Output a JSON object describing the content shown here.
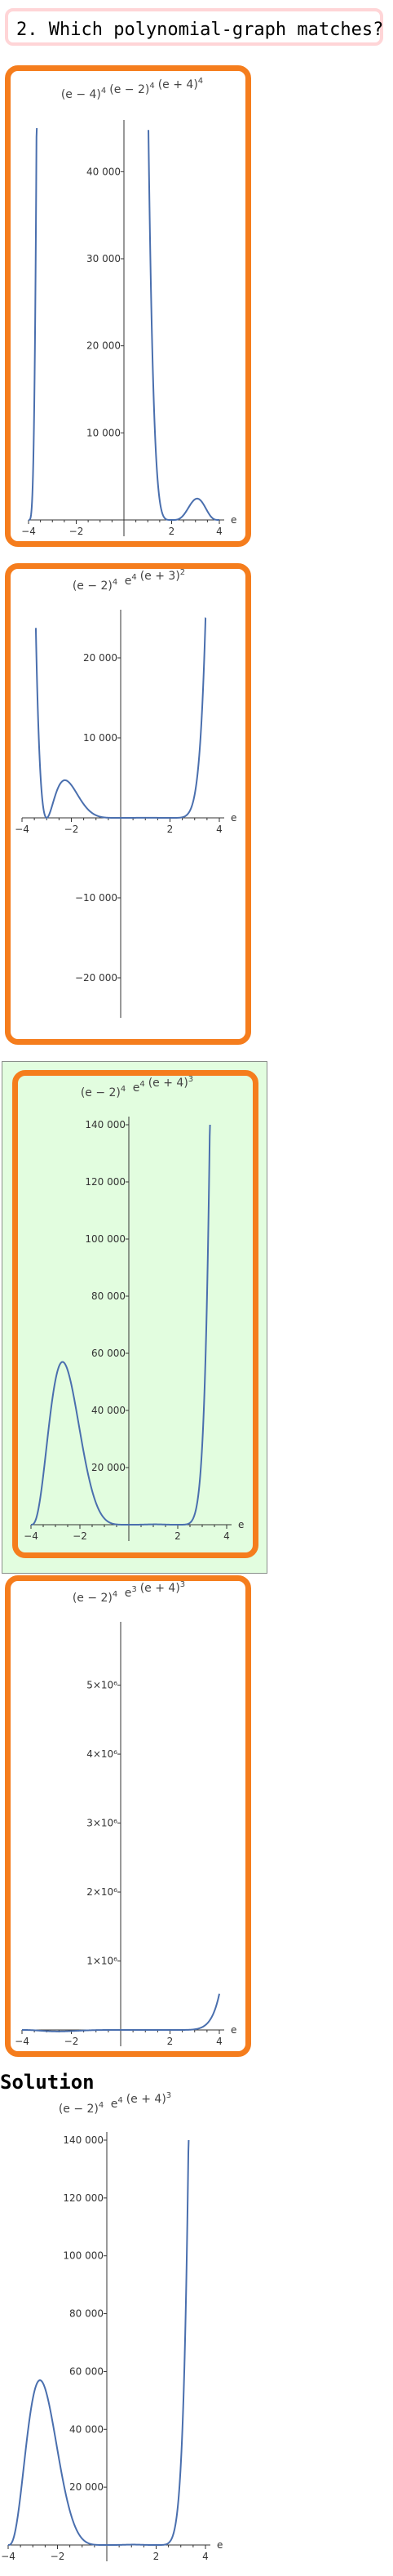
{
  "question": "2. Which polynomial-graph matches?",
  "solution_label": "Solution",
  "chart_data": [
    {
      "type": "line",
      "function": "(e-4)^4 (e-2)^4 (e+4)^4",
      "title_parts": [
        [
          "(e − 4)",
          "4"
        ],
        [
          "(e − 2)",
          "4"
        ],
        [
          "(e + 4)",
          "4"
        ]
      ],
      "xlim": [
        -4,
        4
      ],
      "ylim": [
        0,
        45000
      ],
      "x_ticks": [
        -4,
        -2,
        2,
        4
      ],
      "y_ticks": [
        10000,
        20000,
        30000,
        40000
      ],
      "y_tick_labels": [
        "10 000",
        "20 000",
        "30 000",
        "40 000"
      ],
      "x_axis_label": "e",
      "selected": false,
      "correct": false
    },
    {
      "type": "line",
      "function": "(e-2)^4 e^4 (e+3)^2",
      "title_parts": [
        [
          "(e − 2)",
          "4"
        ],
        [
          " e",
          "4"
        ],
        [
          "(e + 3)",
          "2"
        ]
      ],
      "xlim": [
        -4,
        4
      ],
      "ylim": [
        -25000,
        25000
      ],
      "x_ticks": [
        -4,
        -2,
        2,
        4
      ],
      "y_ticks": [
        -20000,
        -10000,
        10000,
        20000
      ],
      "y_tick_labels": [
        "−20 000",
        "−10 000",
        "10 000",
        "20 000"
      ],
      "x_axis_label": "e",
      "selected": false,
      "correct": false
    },
    {
      "type": "line",
      "function": "(e-2)^4 e^4 (e+4)^3",
      "title_parts": [
        [
          "(e − 2)",
          "4"
        ],
        [
          " e",
          "4"
        ],
        [
          "(e + 4)",
          "3"
        ]
      ],
      "xlim": [
        -4,
        4
      ],
      "ylim": [
        0,
        140000
      ],
      "x_ticks": [
        -4,
        -2,
        2,
        4
      ],
      "y_ticks": [
        20000,
        40000,
        60000,
        80000,
        100000,
        120000,
        140000
      ],
      "y_tick_labels": [
        "20 000",
        "40 000",
        "60 000",
        "80 000",
        "100 000",
        "120 000",
        "140 000"
      ],
      "x_axis_label": "e",
      "selected": true,
      "correct": true
    },
    {
      "type": "line",
      "function": "(e-2)^4 e^3 (e+4)^3",
      "title_parts": [
        [
          "(e − 2)",
          "4"
        ],
        [
          " e",
          "3"
        ],
        [
          "(e + 4)",
          "3"
        ]
      ],
      "xlim": [
        -4,
        4
      ],
      "ylim": [
        0,
        5800000
      ],
      "x_ticks": [
        -4,
        -2,
        2,
        4
      ],
      "y_ticks": [
        1000000,
        2000000,
        3000000,
        4000000,
        5000000
      ],
      "y_tick_labels": [
        "1×10⁶",
        "2×10⁶",
        "3×10⁶",
        "4×10⁶",
        "5×10⁶"
      ],
      "x_axis_label": "e",
      "selected": false,
      "correct": false
    },
    {
      "type": "line",
      "function": "(e-2)^4 e^4 (e+4)^3",
      "title_parts": [
        [
          "(e − 2)",
          "4"
        ],
        [
          " e",
          "4"
        ],
        [
          "(e + 4)",
          "3"
        ]
      ],
      "xlim": [
        -4,
        4
      ],
      "ylim": [
        0,
        140000
      ],
      "x_ticks": [
        -4,
        -2,
        2,
        4
      ],
      "y_ticks": [
        20000,
        40000,
        60000,
        80000,
        100000,
        120000,
        140000
      ],
      "y_tick_labels": [
        "20 000",
        "40 000",
        "60 000",
        "80 000",
        "100 000",
        "120 000",
        "140 000"
      ],
      "x_axis_label": "e",
      "role": "solution"
    }
  ]
}
